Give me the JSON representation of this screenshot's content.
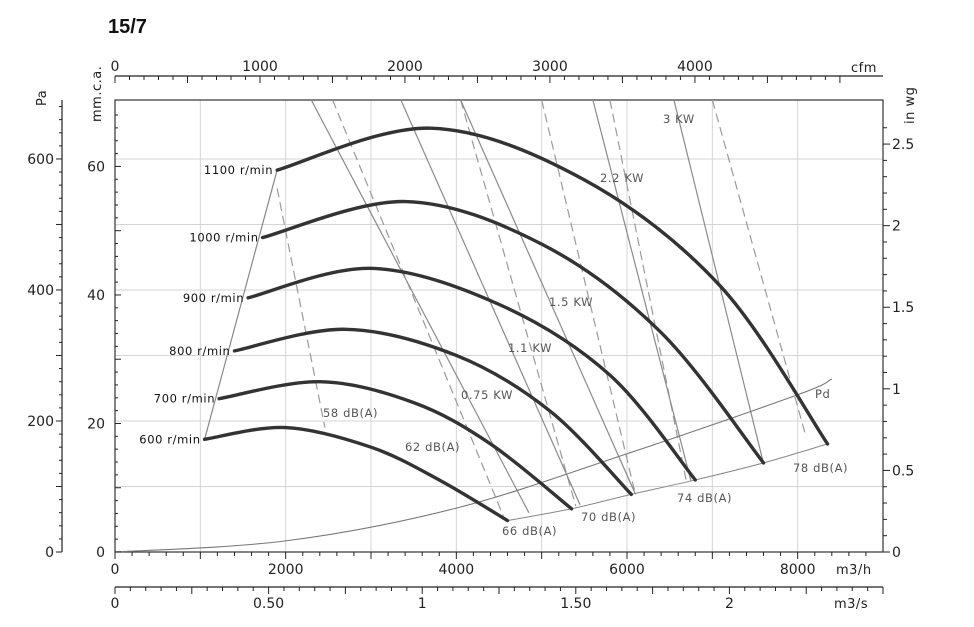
{
  "chart_data": {
    "type": "line",
    "title": "15/7",
    "x_range_m3h": [
      0,
      9000
    ],
    "y_range_pa": [
      0,
      690
    ],
    "grid": true,
    "axes": {
      "bottom_primary": {
        "unit": "m3/h",
        "ticks": [
          0,
          2000,
          4000,
          6000,
          8000
        ],
        "tick_labels": [
          "0",
          "2000",
          "4000",
          "6000",
          "8000"
        ]
      },
      "bottom_secondary": {
        "unit": "m3/s",
        "ticks": [
          0,
          0.5,
          1,
          1.5,
          2
        ],
        "tick_labels": [
          "0",
          "0.50",
          "1",
          "1.50",
          "2"
        ]
      },
      "top": {
        "unit": "cfm",
        "ticks": [
          0,
          1000,
          2000,
          3000,
          4000
        ],
        "tick_labels": [
          "0",
          "1000",
          "2000",
          "3000",
          "4000"
        ]
      },
      "left_outer": {
        "unit": "Pa",
        "ticks": [
          0,
          200,
          400,
          600
        ],
        "tick_labels": [
          "0",
          "200",
          "400",
          "600"
        ]
      },
      "left_inner": {
        "unit": "mm.c.a.",
        "ticks": [
          0,
          20,
          40,
          60
        ],
        "tick_labels": [
          "0",
          "20",
          "40",
          "60"
        ]
      },
      "right": {
        "unit": "in wg",
        "ticks": [
          0,
          0.5,
          1,
          1.5,
          2,
          2.5
        ],
        "tick_labels": [
          "0",
          "0.5",
          "1",
          "1.5",
          "2",
          "2.5"
        ]
      }
    },
    "series": [
      {
        "name": "600 r/min",
        "x": [
          1050,
          2000,
          3000,
          3800,
          4600
        ],
        "y": [
          172,
          190,
          160,
          110,
          48
        ]
      },
      {
        "name": "700 r/min",
        "x": [
          1220,
          2400,
          3500,
          4400,
          5350
        ],
        "y": [
          234,
          260,
          228,
          165,
          66
        ]
      },
      {
        "name": "800 r/min",
        "x": [
          1400,
          2700,
          4000,
          5100,
          6050
        ],
        "y": [
          307,
          340,
          300,
          215,
          88
        ]
      },
      {
        "name": "900 r/min",
        "x": [
          1560,
          3000,
          4500,
          5800,
          6800
        ],
        "y": [
          388,
          433,
          378,
          270,
          110
        ]
      },
      {
        "name": "1000 r/min",
        "x": [
          1730,
          3400,
          5000,
          6400,
          7600
        ],
        "y": [
          480,
          535,
          470,
          335,
          136
        ]
      },
      {
        "name": "1100 r/min",
        "x": [
          1900,
          3700,
          5500,
          7100,
          8350
        ],
        "y": [
          583,
          647,
          568,
          405,
          165
        ]
      }
    ],
    "power_lines": [
      {
        "name": "0.75 KW",
        "x": [
          2300,
          4850
        ],
        "y": [
          690,
          60
        ]
      },
      {
        "name": "1.1 KW",
        "x": [
          3350,
          5450
        ],
        "y": [
          690,
          72
        ]
      },
      {
        "name": "1.5 KW",
        "x": [
          4050,
          6100
        ],
        "y": [
          690,
          88
        ]
      },
      {
        "name": "2.2 KW",
        "x": [
          5600,
          6750
        ],
        "y": [
          690,
          108
        ]
      },
      {
        "name": "3 KW",
        "x": [
          6550,
          7600
        ],
        "y": [
          690,
          135
        ]
      }
    ],
    "noise_lines": [
      {
        "name": "58 dB(A)",
        "x": [
          1900,
          2460
        ],
        "y": [
          555,
          190
        ]
      },
      {
        "name": "62 dB(A)",
        "x": [
          2550,
          4550
        ],
        "y": [
          690,
          55
        ]
      },
      {
        "name": "66 dB(A)",
        "x": [
          4050,
          5400
        ],
        "y": [
          690,
          70
        ]
      },
      {
        "name": "70 dB(A)",
        "x": [
          5000,
          6100
        ],
        "y": [
          690,
          87
        ]
      },
      {
        "name": "74 dB(A)",
        "x": [
          5800,
          6700
        ],
        "y": [
          690,
          105
        ]
      },
      {
        "name": "78 dB(A)",
        "x": [
          7000,
          8100
        ],
        "y": [
          690,
          175
        ]
      }
    ],
    "dynamic_pressure": {
      "name": "Pd",
      "x": [
        0,
        2000,
        4000,
        6000,
        8000,
        8400
      ],
      "y": [
        0,
        17,
        67,
        150,
        240,
        264
      ]
    },
    "annotations": {
      "speed_labels": [
        "600 r/min",
        "700 r/min",
        "800 r/min",
        "900 r/min",
        "1000 r/min",
        "1100 r/min"
      ],
      "power_labels": [
        "0.75 KW",
        "1.1 KW",
        "1.5 KW",
        "2.2 KW",
        "3 KW"
      ],
      "noise_labels": [
        "58 dB(A)",
        "62 dB(A)",
        "66 dB(A)",
        "70 dB(A)",
        "74 dB(A)",
        "78 dB(A)"
      ],
      "pd_label": "Pd"
    }
  }
}
